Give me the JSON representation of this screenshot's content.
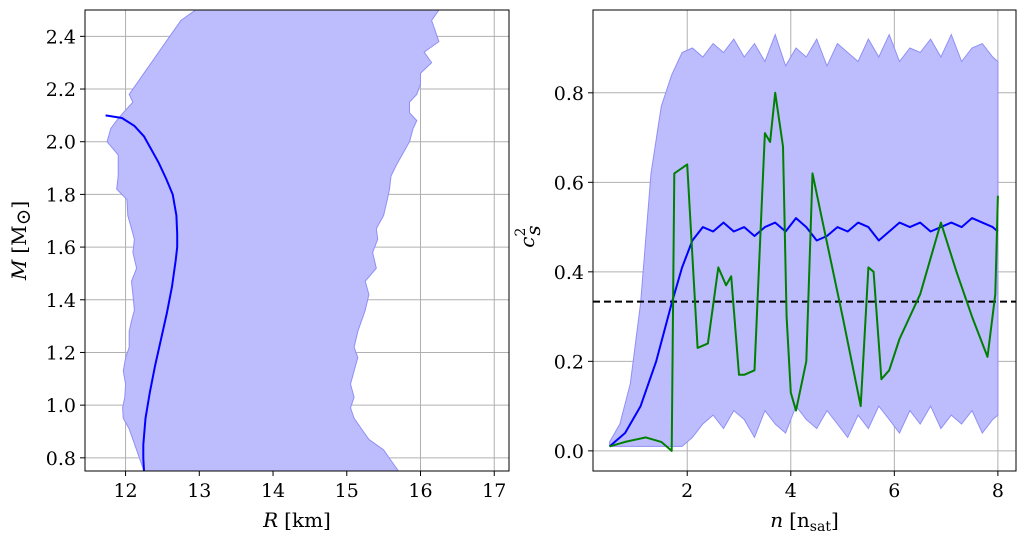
{
  "chart_data": [
    {
      "type": "line",
      "xlabel_var": "R",
      "xlabel_unit": "[km]",
      "ylabel_var": "M",
      "ylabel_unit": "[M",
      "ylabel_sub": "⊙",
      "ylabel_close": "]",
      "xlim": [
        11.45,
        17.2
      ],
      "ylim": [
        0.75,
        2.5
      ],
      "xticks": [
        12,
        13,
        14,
        15,
        16,
        17
      ],
      "yticks": [
        0.8,
        1.0,
        1.2,
        1.4,
        1.6,
        1.8,
        2.0,
        2.2,
        2.4
      ],
      "ytick_labels": [
        "0.8",
        "1.0",
        "1.2",
        "1.4",
        "1.6",
        "1.8",
        "2.0",
        "2.2",
        "2.4"
      ],
      "grid": true,
      "band_color": "#bdbdfe",
      "band_left": {
        "M": [
          0.75,
          0.79,
          0.83,
          0.87,
          0.91,
          0.95,
          0.99,
          1.03,
          1.08,
          1.13,
          1.18,
          1.22,
          1.28,
          1.32,
          1.36,
          1.42,
          1.47,
          1.52,
          1.58,
          1.63,
          1.67,
          1.72,
          1.78,
          1.82,
          1.87,
          1.91,
          1.95,
          2.0,
          2.05,
          2.08,
          2.11,
          2.15,
          2.18,
          2.22,
          2.26,
          2.3,
          2.34,
          2.38,
          2.42,
          2.46,
          2.5
        ],
        "R": [
          12.25,
          12.2,
          12.15,
          12.1,
          12.05,
          11.97,
          11.96,
          11.99,
          12.0,
          11.97,
          12.0,
          12.05,
          12.05,
          12.08,
          12.12,
          12.1,
          12.08,
          12.15,
          12.1,
          12.12,
          12.08,
          12.03,
          12.02,
          11.88,
          11.9,
          11.9,
          11.9,
          11.75,
          11.8,
          11.88,
          11.97,
          12.1,
          12.05,
          12.15,
          12.25,
          12.35,
          12.45,
          12.55,
          12.65,
          12.75,
          12.95
        ]
      },
      "band_right": {
        "M": [
          0.75,
          0.79,
          0.83,
          0.87,
          0.91,
          0.95,
          0.99,
          1.03,
          1.08,
          1.13,
          1.18,
          1.22,
          1.28,
          1.32,
          1.36,
          1.42,
          1.47,
          1.52,
          1.58,
          1.63,
          1.67,
          1.72,
          1.78,
          1.82,
          1.87,
          1.91,
          1.95,
          2.0,
          2.05,
          2.08,
          2.11,
          2.15,
          2.18,
          2.22,
          2.26,
          2.3,
          2.34,
          2.38,
          2.42,
          2.46,
          2.5
        ],
        "R": [
          15.7,
          15.6,
          15.5,
          15.3,
          15.2,
          15.1,
          15.05,
          15.1,
          15.05,
          15.1,
          15.15,
          15.1,
          15.15,
          15.2,
          15.25,
          15.3,
          15.25,
          15.4,
          15.35,
          15.42,
          15.4,
          15.5,
          15.55,
          15.58,
          15.6,
          15.67,
          15.75,
          15.85,
          15.9,
          15.95,
          15.85,
          15.85,
          15.95,
          16.0,
          16.0,
          16.15,
          16.05,
          16.25,
          16.2,
          16.15,
          16.25
        ]
      },
      "series": [
        {
          "color": "#0000ff",
          "R": [
            12.25,
            12.24,
            12.24,
            12.27,
            12.33,
            12.4,
            12.48,
            12.56,
            12.63,
            12.68,
            12.7,
            12.7,
            12.69,
            12.64,
            12.55,
            12.45,
            12.35,
            12.25,
            12.12,
            11.95,
            11.73
          ],
          "M": [
            0.75,
            0.8,
            0.85,
            0.95,
            1.05,
            1.15,
            1.25,
            1.35,
            1.45,
            1.55,
            1.6,
            1.65,
            1.72,
            1.8,
            1.86,
            1.92,
            1.97,
            2.02,
            2.06,
            2.09,
            2.1
          ]
        }
      ]
    },
    {
      "type": "line",
      "xlabel_var": "n",
      "xlabel_unit_open": "[n",
      "xlabel_sub": "sat",
      "xlabel_unit_close": "]",
      "ylabel_main": "c",
      "ylabel_sup": "2",
      "ylabel_sub": "s",
      "xlim": [
        0.18,
        8.35
      ],
      "ylim": [
        -0.045,
        0.985
      ],
      "xticks": [
        2,
        4,
        6,
        8
      ],
      "yticks": [
        0.0,
        0.2,
        0.4,
        0.6,
        0.8
      ],
      "ytick_labels": [
        "0.0",
        "0.2",
        "0.4",
        "0.6",
        "0.8"
      ],
      "grid": true,
      "band_color": "#bdbdfe",
      "reference_line": {
        "y": 0.3333,
        "style": "dashed",
        "color": "#000000"
      },
      "band": {
        "n": [
          0.5,
          0.7,
          0.9,
          1.1,
          1.3,
          1.5,
          1.7,
          1.9,
          2.1,
          2.3,
          2.5,
          2.7,
          2.9,
          3.1,
          3.3,
          3.5,
          3.7,
          3.9,
          4.1,
          4.3,
          4.5,
          4.7,
          4.9,
          5.1,
          5.3,
          5.5,
          5.7,
          5.9,
          6.1,
          6.3,
          6.5,
          6.7,
          6.9,
          7.1,
          7.3,
          7.5,
          7.7,
          7.9,
          8.0
        ],
        "upper": [
          0.02,
          0.06,
          0.15,
          0.33,
          0.62,
          0.77,
          0.84,
          0.89,
          0.9,
          0.88,
          0.91,
          0.89,
          0.92,
          0.88,
          0.91,
          0.87,
          0.93,
          0.86,
          0.9,
          0.88,
          0.92,
          0.86,
          0.91,
          0.89,
          0.87,
          0.92,
          0.88,
          0.93,
          0.87,
          0.9,
          0.89,
          0.92,
          0.88,
          0.93,
          0.87,
          0.9,
          0.91,
          0.88,
          0.87
        ],
        "lower": [
          0.01,
          0.01,
          0.01,
          0.01,
          0.01,
          0.01,
          0.01,
          0.01,
          0.03,
          0.06,
          0.08,
          0.05,
          0.09,
          0.07,
          0.03,
          0.09,
          0.06,
          0.04,
          0.1,
          0.07,
          0.05,
          0.09,
          0.06,
          0.03,
          0.08,
          0.05,
          0.1,
          0.07,
          0.04,
          0.09,
          0.06,
          0.1,
          0.05,
          0.08,
          0.06,
          0.09,
          0.04,
          0.07,
          0.08
        ]
      },
      "series": [
        {
          "color": "#0000ff",
          "n": [
            0.5,
            0.8,
            1.1,
            1.4,
            1.7,
            1.9,
            2.1,
            2.3,
            2.5,
            2.7,
            2.9,
            3.1,
            3.3,
            3.5,
            3.7,
            3.9,
            4.1,
            4.3,
            4.5,
            4.7,
            4.9,
            5.1,
            5.3,
            5.5,
            5.7,
            5.9,
            6.1,
            6.3,
            6.5,
            6.7,
            6.9,
            7.1,
            7.3,
            7.5,
            7.7,
            7.9,
            8.0
          ],
          "values": [
            0.01,
            0.04,
            0.1,
            0.2,
            0.33,
            0.41,
            0.47,
            0.5,
            0.49,
            0.51,
            0.49,
            0.5,
            0.48,
            0.5,
            0.51,
            0.49,
            0.52,
            0.5,
            0.47,
            0.48,
            0.5,
            0.49,
            0.51,
            0.5,
            0.47,
            0.49,
            0.51,
            0.5,
            0.51,
            0.49,
            0.5,
            0.51,
            0.5,
            0.52,
            0.51,
            0.5,
            0.49
          ]
        },
        {
          "color": "#008000",
          "n": [
            0.5,
            0.8,
            1.2,
            1.5,
            1.7,
            1.75,
            2.0,
            2.2,
            2.4,
            2.6,
            2.75,
            2.85,
            3.0,
            3.1,
            3.3,
            3.45,
            3.5,
            3.6,
            3.7,
            3.85,
            3.92,
            4.0,
            4.1,
            4.3,
            4.42,
            4.6,
            5.0,
            5.35,
            5.5,
            5.6,
            5.75,
            5.9,
            6.1,
            6.5,
            6.9,
            7.2,
            7.5,
            7.8,
            7.95,
            8.0
          ],
          "values": [
            0.01,
            0.02,
            0.03,
            0.02,
            0.0,
            0.62,
            0.64,
            0.23,
            0.24,
            0.41,
            0.37,
            0.39,
            0.17,
            0.17,
            0.18,
            0.58,
            0.71,
            0.69,
            0.8,
            0.68,
            0.3,
            0.13,
            0.09,
            0.2,
            0.62,
            0.52,
            0.3,
            0.1,
            0.41,
            0.4,
            0.16,
            0.18,
            0.25,
            0.35,
            0.51,
            0.4,
            0.3,
            0.21,
            0.35,
            0.57
          ]
        }
      ]
    }
  ]
}
